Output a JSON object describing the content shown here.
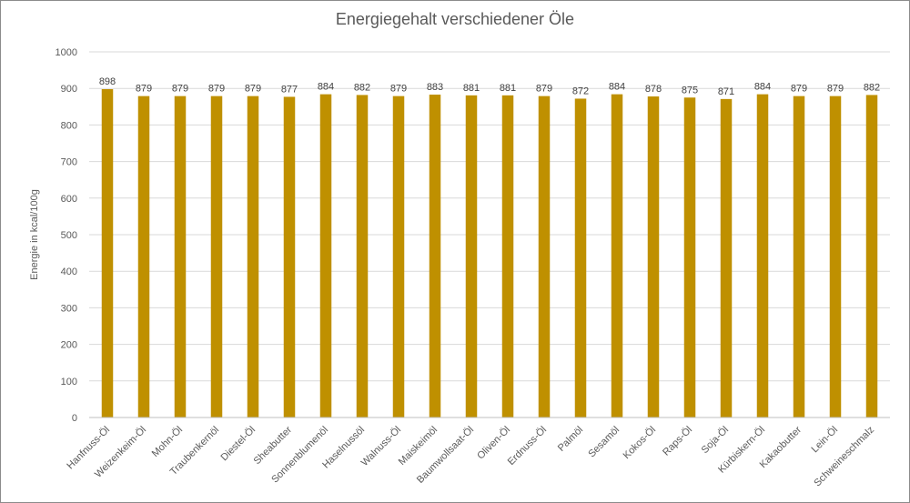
{
  "chart_data": {
    "type": "bar",
    "title": "Energiegehalt verschiedener Öle",
    "xlabel": "",
    "ylabel": "Energie in kcal/100g",
    "ylim": [
      0,
      1000
    ],
    "ytick_step": 100,
    "grid": true,
    "legend": "none",
    "bar_color": "#bf9000",
    "categories": [
      "Hanfnuss-Öl",
      "Weizenkeim-Öl",
      "Mohn-Öl",
      "Traubenkernöl",
      "Diestel-Öl",
      "Sheabutter",
      "Sonnenblumenöl",
      "Haselnussöl",
      "Walnuss-Öl",
      "Maiskeimöl",
      "Baumwollsaat-Öl",
      "Oliven-Öl",
      "Erdnuss-Öl",
      "Palmöl",
      "Sesamöl",
      "Kokos-Öl",
      "Raps-Öl",
      "Soja-Öl",
      "Kürbiskern-Öl",
      "Kakaobutter",
      "Lein-Öl",
      "Schweineschmalz"
    ],
    "values": [
      898,
      879,
      879,
      879,
      879,
      877,
      884,
      882,
      879,
      883,
      881,
      881,
      879,
      872,
      884,
      878,
      875,
      871,
      884,
      879,
      879,
      882
    ]
  }
}
